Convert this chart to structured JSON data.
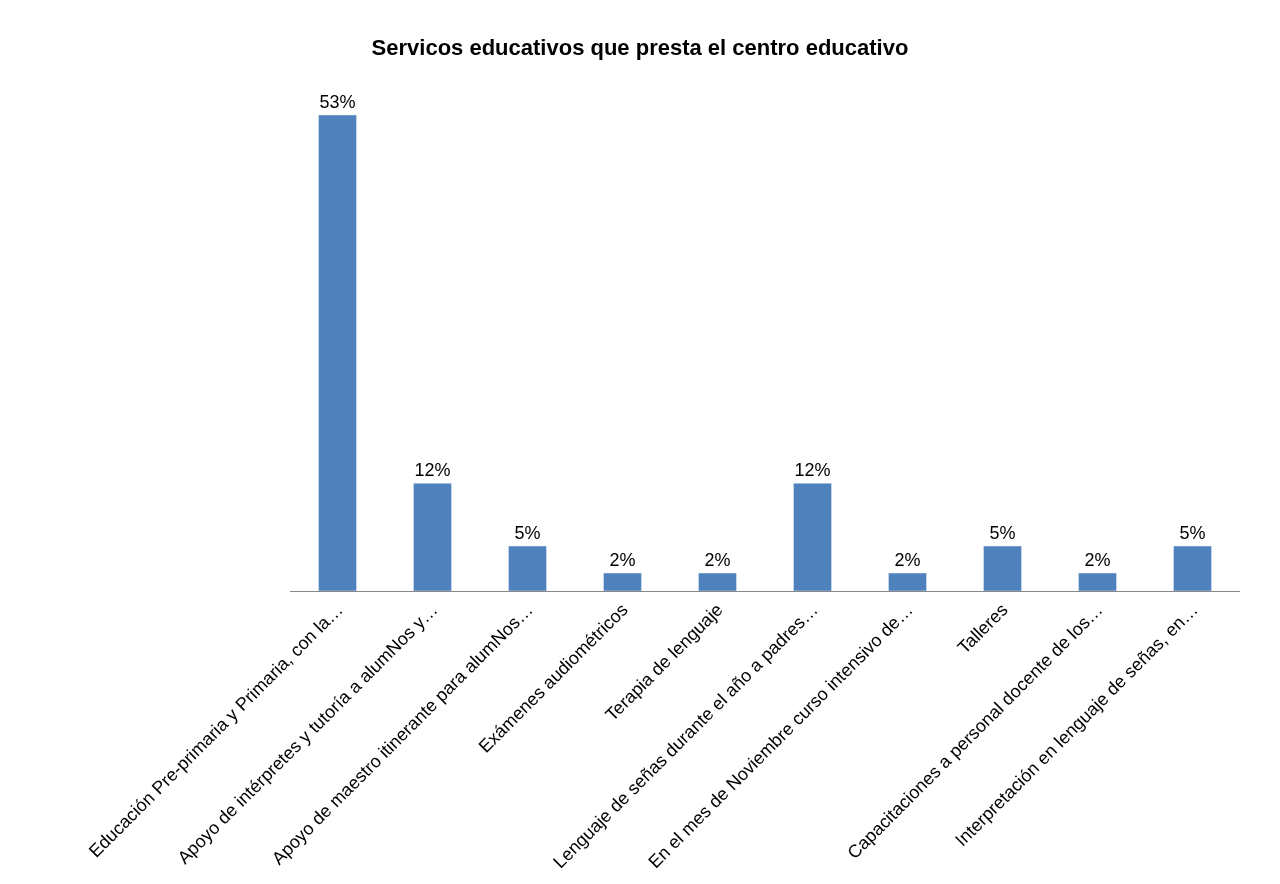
{
  "chart_data": {
    "type": "bar",
    "title": "Servicos educativos que presta el centro educativo",
    "categories": [
      "Educación Pre-primaria y Primaria, con la…",
      "Apoyo de intérpretes y tutoría a alumNos y…",
      "Apoyo de maestro itinerante para alumNos…",
      "Exámenes audiométricos",
      "Terapia de lenguaje",
      "Lenguaje de señas durante el año a padres…",
      "En el mes de Noviembre curso intensivo de…",
      "Talleres",
      "Capacitaciones a personal docente de los…",
      "Interpretación en lenguaje de señas, en…"
    ],
    "values": [
      53,
      12,
      5,
      2,
      2,
      12,
      2,
      5,
      2,
      5
    ],
    "value_labels": [
      "53%",
      "12%",
      "5%",
      "2%",
      "2%",
      "12%",
      "2%",
      "5%",
      "2%",
      "5%"
    ],
    "color": "#4f81bd"
  }
}
